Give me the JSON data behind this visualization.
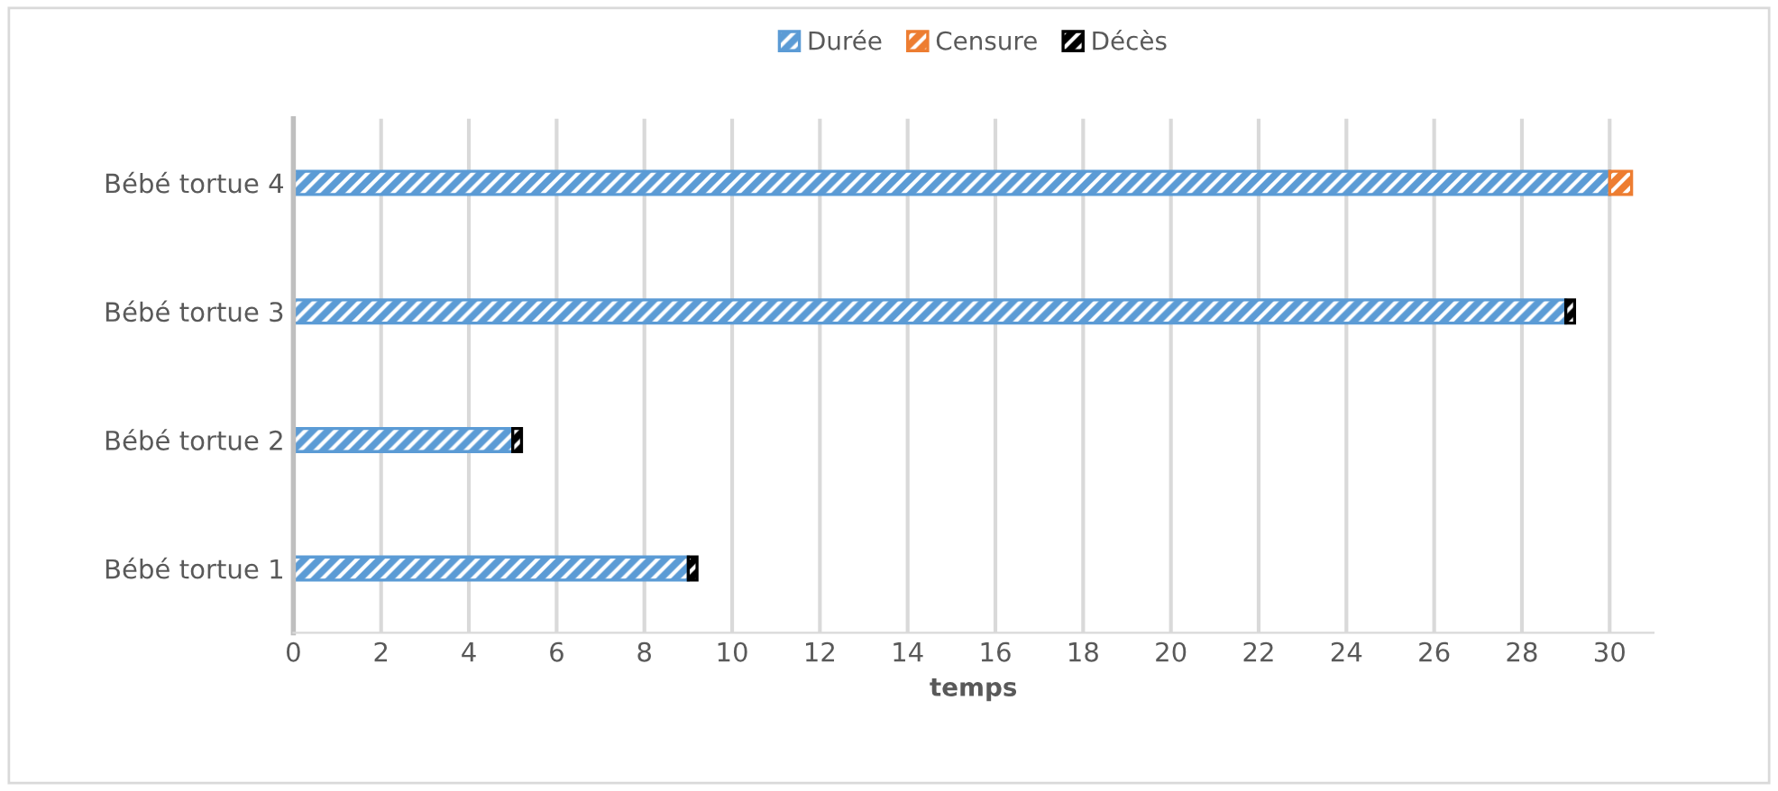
{
  "chart_data": {
    "type": "bar",
    "orientation": "horizontal",
    "stacked": true,
    "xlabel": "temps",
    "categories": [
      "Bébé tortue 4",
      "Bébé tortue 3",
      "Bébé tortue 2",
      "Bébé tortue 1"
    ],
    "series": [
      {
        "name": "Durée",
        "color": "#5b9bd5",
        "values": [
          30,
          29,
          5,
          9
        ]
      },
      {
        "name": "Censure",
        "color": "#ed7d31",
        "values": [
          0.5,
          null,
          null,
          null
        ]
      },
      {
        "name": "Décès",
        "color": "#000000",
        "values": [
          null,
          0.2,
          0.2,
          0.2
        ]
      }
    ],
    "xlim": [
      0,
      31
    ],
    "xticks": [
      0,
      2,
      4,
      6,
      8,
      10,
      12,
      14,
      16,
      18,
      20,
      22,
      24,
      26,
      28,
      30
    ],
    "grid": "x",
    "legend": "top"
  }
}
